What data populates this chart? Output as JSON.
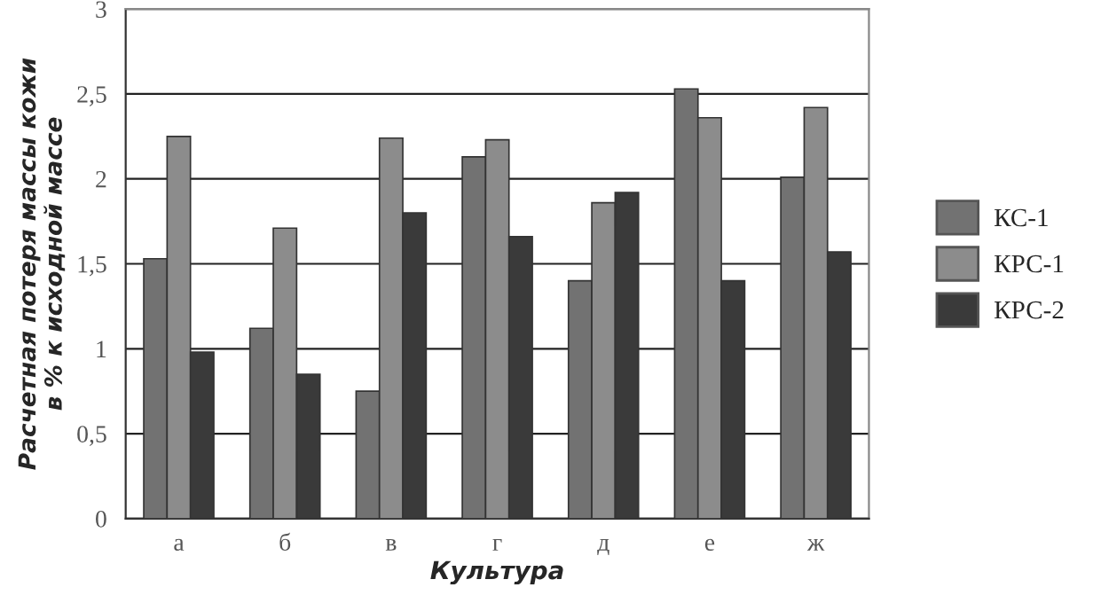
{
  "chart_data": {
    "type": "bar",
    "xlabel": "Культура",
    "ylabel": "Расчетная потеря массы кожи\nв % к исходной массе",
    "categories": [
      "а",
      "б",
      "в",
      "г",
      "д",
      "е",
      "ж"
    ],
    "series": [
      {
        "name": "КС-1",
        "color": "#727272",
        "values": [
          1.53,
          1.12,
          0.75,
          2.13,
          1.4,
          2.53,
          2.01
        ]
      },
      {
        "name": "КРС-1",
        "color": "#8c8c8c",
        "values": [
          2.25,
          1.71,
          2.24,
          2.23,
          1.86,
          2.36,
          2.42
        ]
      },
      {
        "name": "КРС-2",
        "color": "#3a3a3a",
        "values": [
          0.98,
          0.85,
          1.8,
          1.66,
          1.92,
          1.4,
          1.57
        ]
      }
    ],
    "ylim": [
      0,
      3
    ],
    "yticks": [
      0,
      {
        "value": 0.5,
        "label": "0,5"
      },
      1,
      {
        "value": 1.5,
        "label": "1,5"
      },
      2,
      {
        "value": 2.5,
        "label": "2,5"
      },
      3
    ],
    "grid": "y",
    "legend": "right"
  }
}
